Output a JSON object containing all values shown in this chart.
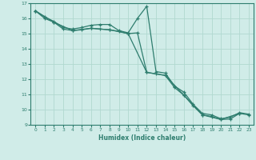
{
  "xlabel": "Humidex (Indice chaleur)",
  "background_color": "#d0ece8",
  "grid_color": "#b0d8d0",
  "line_color": "#2e7d6e",
  "xlim": [
    -0.5,
    23.5
  ],
  "ylim": [
    9,
    17
  ],
  "yticks": [
    9,
    10,
    11,
    12,
    13,
    14,
    15,
    16,
    17
  ],
  "xticks": [
    0,
    1,
    2,
    3,
    4,
    5,
    6,
    7,
    8,
    9,
    10,
    11,
    12,
    13,
    14,
    15,
    16,
    17,
    18,
    19,
    20,
    21,
    22,
    23
  ],
  "line1_x": [
    0,
    1,
    2,
    3,
    4,
    5,
    6,
    7,
    8,
    9,
    10,
    11,
    12,
    13,
    14,
    15,
    16,
    17,
    18,
    19,
    20,
    21,
    22,
    23
  ],
  "line1_y": [
    16.5,
    16.1,
    15.8,
    15.4,
    15.3,
    15.4,
    15.55,
    15.6,
    15.6,
    15.2,
    15.05,
    16.0,
    16.8,
    12.5,
    12.4,
    11.55,
    11.15,
    10.35,
    9.75,
    9.65,
    9.4,
    9.5,
    9.8,
    9.7
  ],
  "line2_x": [
    0,
    1,
    2,
    3,
    4,
    5,
    6,
    7,
    8,
    9,
    10,
    11,
    12,
    13,
    14,
    15,
    16,
    17,
    18,
    19,
    20,
    21,
    22,
    23
  ],
  "line2_y": [
    16.5,
    16.0,
    15.75,
    15.3,
    15.2,
    15.25,
    15.35,
    15.3,
    15.25,
    15.15,
    15.0,
    15.05,
    12.45,
    12.35,
    12.25,
    11.45,
    10.95,
    10.25,
    9.65,
    9.55,
    9.35,
    9.38,
    9.75,
    9.65
  ],
  "line3_x": [
    0,
    2,
    4,
    6,
    8,
    10,
    12,
    14,
    16,
    18,
    20,
    22
  ],
  "line3_y": [
    16.5,
    15.75,
    15.2,
    15.35,
    15.25,
    15.0,
    12.45,
    12.25,
    10.95,
    9.65,
    9.35,
    9.75
  ]
}
